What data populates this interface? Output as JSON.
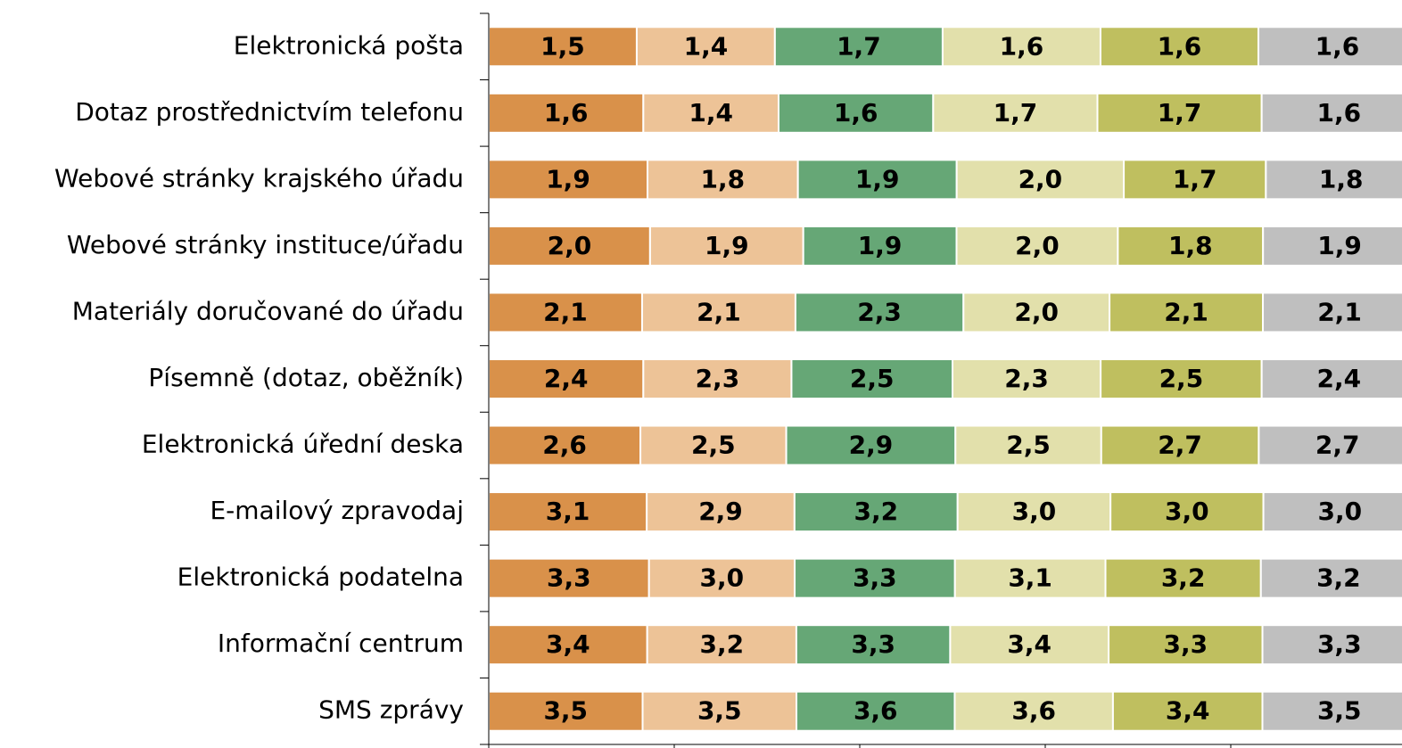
{
  "chart_data": {
    "type": "bar",
    "orientation": "horizontal",
    "stacked": "percent",
    "categories": [
      "Elektronická pošta",
      "Dotaz prostřednictvím telefonu",
      "Webové stránky krajského úřadu",
      "Webové stránky instituce/úřadu",
      "Materiály doručované do úřadu",
      "Písemně (dotaz, oběžník)",
      "Elektronická úřední deska",
      "E-mailový zpravodaj",
      "Elektronická podatelna",
      "Informační centrum",
      "SMS zprávy"
    ],
    "xlim": [
      0,
      100
    ],
    "xticks": [
      0,
      20,
      40,
      60,
      80,
      100
    ],
    "series": [
      {
        "color": "#d9914a",
        "values": [
          1.5,
          1.6,
          1.9,
          2.0,
          2.1,
          2.4,
          2.6,
          3.1,
          3.3,
          3.4,
          3.5
        ],
        "value_labels": [
          "1,5",
          "1,6",
          "1,9",
          "2,0",
          "2,1",
          "2,4",
          "2,6",
          "3,1",
          "3,3",
          "3,4",
          "3,5"
        ]
      },
      {
        "color": "#edc397",
        "values": [
          1.4,
          1.4,
          1.8,
          1.9,
          2.1,
          2.3,
          2.5,
          2.9,
          3.0,
          3.2,
          3.5
        ],
        "value_labels": [
          "1,4",
          "1,4",
          "1,8",
          "1,9",
          "2,1",
          "2,3",
          "2,5",
          "2,9",
          "3,0",
          "3,2",
          "3,5"
        ]
      },
      {
        "color": "#66a776",
        "values": [
          1.7,
          1.6,
          1.9,
          1.9,
          2.3,
          2.5,
          2.9,
          3.2,
          3.3,
          3.3,
          3.6
        ],
        "value_labels": [
          "1,7",
          "1,6",
          "1,9",
          "1,9",
          "2,3",
          "2,5",
          "2,9",
          "3,2",
          "3,3",
          "3,3",
          "3,6"
        ]
      },
      {
        "color": "#e2e0ab",
        "values": [
          1.6,
          1.7,
          2.0,
          2.0,
          2.0,
          2.3,
          2.5,
          3.0,
          3.1,
          3.4,
          3.6
        ],
        "value_labels": [
          "1,6",
          "1,7",
          "2,0",
          "2,0",
          "2,0",
          "2,3",
          "2,5",
          "3,0",
          "3,1",
          "3,4",
          "3,6"
        ]
      },
      {
        "color": "#bfbf5f",
        "values": [
          1.6,
          1.7,
          1.7,
          1.8,
          2.1,
          2.5,
          2.7,
          3.0,
          3.2,
          3.3,
          3.4
        ],
        "value_labels": [
          "1,6",
          "1,7",
          "1,7",
          "1,8",
          "2,1",
          "2,5",
          "2,7",
          "3,0",
          "3,2",
          "3,3",
          "3,4"
        ]
      },
      {
        "color": "#bfbfbf",
        "values": [
          1.6,
          1.6,
          1.8,
          1.9,
          2.1,
          2.4,
          2.7,
          3.0,
          3.2,
          3.3,
          3.5
        ],
        "value_labels": [
          "1,6",
          "1,6",
          "1,8",
          "1,9",
          "2,1",
          "2,4",
          "2,7",
          "3,0",
          "3,2",
          "3,3",
          "3,5"
        ]
      }
    ]
  }
}
